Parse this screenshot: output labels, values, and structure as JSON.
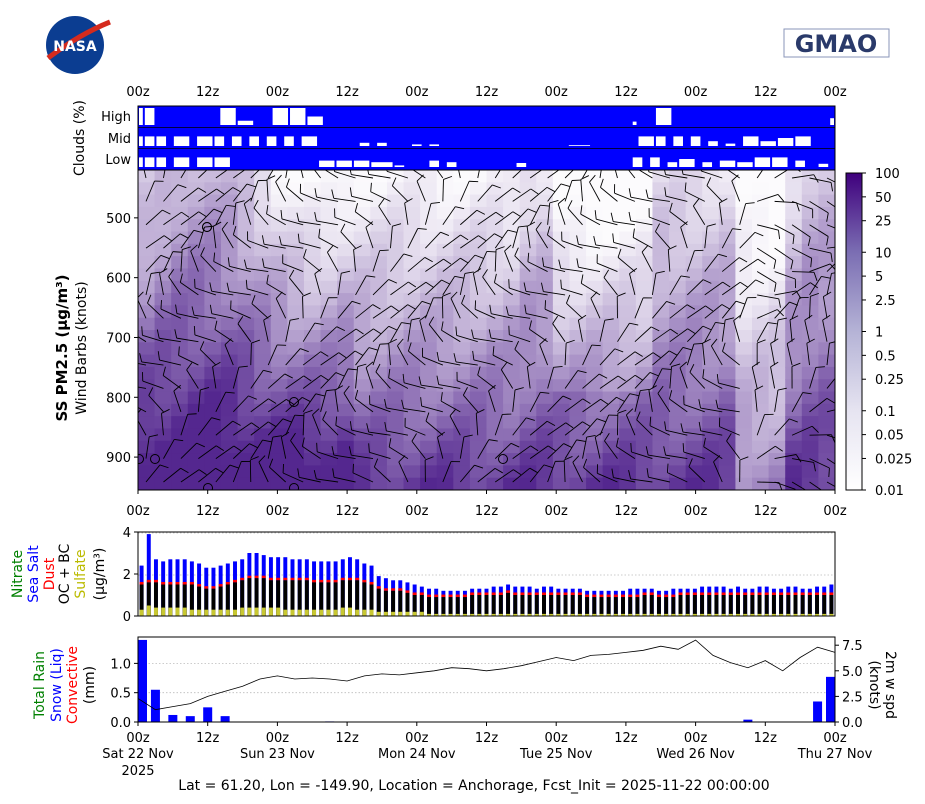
{
  "logos": {
    "nasa": "NASA",
    "gmao": "GMAO"
  },
  "time_axis": {
    "tick_labels": [
      "00z",
      "12z",
      "00z",
      "12z",
      "00z",
      "12z",
      "00z",
      "12z",
      "00z",
      "12z",
      "00z"
    ],
    "day_labels": [
      "Sat 22 Nov",
      "Sun 23 Nov",
      "Mon 24 Nov",
      "Tue 25 Nov",
      "Wed 26 Nov",
      "Thu 27 Nov"
    ],
    "year_label": "2025"
  },
  "clouds": {
    "ylabel": "Clouds (%)",
    "levels": [
      "High",
      "Mid",
      "Low"
    ],
    "color": "#0000ff"
  },
  "profile": {
    "ylabel_bold": "SS PM2.5 (μg/m³)",
    "ylabel": "Wind Barbs (knots)",
    "pressure_ticks": [
      "500",
      "600",
      "700",
      "800",
      "900"
    ],
    "pressure_range": [
      955,
      420
    ],
    "colorbar_ticks": [
      "100",
      "50",
      "25",
      "10",
      "5",
      "2.5",
      "1",
      "0.5",
      "0.25",
      "0.1",
      "0.05",
      "0.025",
      "0.01"
    ],
    "colormap": [
      "#ffffff",
      "#3f007d"
    ]
  },
  "aerosol": {
    "ylabel_lines": [
      "Nitrate",
      "Sea Salt",
      "Dust",
      "OC + BC",
      "Sulfate",
      "(μg/m³)"
    ],
    "ylabel_colors": [
      "#008000",
      "#0000ff",
      "#ff0000",
      "#000000",
      "#bbbb00",
      "#000000"
    ],
    "yticks": [
      "0",
      "2",
      "4"
    ],
    "ylim": [
      0,
      4
    ]
  },
  "precip": {
    "ylabel_lines": [
      "Total Rain",
      "Snow (Liq)",
      "Convective",
      "(mm)"
    ],
    "ylabel_colors": [
      "#008000",
      "#0000ff",
      "#ff0000",
      "#000000"
    ],
    "yticks": [
      "0.0",
      "0.5",
      "1.0"
    ],
    "ylim": [
      0,
      1.45
    ],
    "right_ylabel_lines": [
      "2m w spd",
      "(knots)"
    ],
    "right_yticks": [
      "0.0",
      "2.5",
      "5.0",
      "7.5"
    ],
    "right_ylim": [
      0,
      8.3
    ]
  },
  "footer": "Lat = 61.20, Lon = -149.90, Location = Anchorage, Fcst_Init = 2025-11-22 00:00:00",
  "chart_data": {
    "type": "bar",
    "x_hours": [
      0,
      120
    ],
    "x_tick_step_hours": 12,
    "aerosol_series": {
      "total_hourly_3h": [
        2.4,
        3.9,
        2.7,
        2.6,
        2.7,
        2.7,
        2.7,
        2.6,
        2.5,
        2.3,
        2.3,
        2.4,
        2.5,
        2.6,
        2.7,
        3.0,
        3.0,
        2.9,
        2.8,
        2.8,
        2.8,
        2.7,
        2.7,
        2.7,
        2.6,
        2.6,
        2.6,
        2.6,
        2.7,
        2.8,
        2.7,
        2.5,
        2.4,
        1.9,
        1.8,
        1.7,
        1.7,
        1.6,
        1.5,
        1.4,
        1.3,
        1.3,
        1.2,
        1.2,
        1.2,
        1.2,
        1.3,
        1.3,
        1.3,
        1.4,
        1.4,
        1.5,
        1.4,
        1.4,
        1.4,
        1.3,
        1.4,
        1.4,
        1.3,
        1.3,
        1.3,
        1.3,
        1.2,
        1.2,
        1.2,
        1.2,
        1.2,
        1.2,
        1.3,
        1.3,
        1.3,
        1.3,
        1.2,
        1.2,
        1.3,
        1.3,
        1.3,
        1.3,
        1.4,
        1.4,
        1.4,
        1.4,
        1.3,
        1.4,
        1.3,
        1.3,
        1.4,
        1.4,
        1.3,
        1.3,
        1.4,
        1.4,
        1.3,
        1.3,
        1.4,
        1.4,
        1.5
      ],
      "black_hourly_3h": [
        1.5,
        1.6,
        1.6,
        1.5,
        1.5,
        1.5,
        1.5,
        1.5,
        1.4,
        1.3,
        1.3,
        1.4,
        1.5,
        1.6,
        1.7,
        1.8,
        1.8,
        1.8,
        1.7,
        1.7,
        1.7,
        1.7,
        1.7,
        1.7,
        1.6,
        1.6,
        1.6,
        1.6,
        1.7,
        1.7,
        1.7,
        1.6,
        1.5,
        1.3,
        1.2,
        1.2,
        1.2,
        1.1,
        1.0,
        1.0,
        0.9,
        0.9,
        0.9,
        0.9,
        0.9,
        0.9,
        1.0,
        1.0,
        1.0,
        1.0,
        1.0,
        1.1,
        1.0,
        1.0,
        1.0,
        1.0,
        1.0,
        1.0,
        1.0,
        1.0,
        1.0,
        1.0,
        0.9,
        0.9,
        0.9,
        0.9,
        0.9,
        0.9,
        0.9,
        0.9,
        1.0,
        1.0,
        0.9,
        0.9,
        0.9,
        1.0,
        1.0,
        1.0,
        1.0,
        1.0,
        1.0,
        1.0,
        1.0,
        1.0,
        1.0,
        1.0,
        1.0,
        1.0,
        1.0,
        1.0,
        1.0,
        1.0,
        1.0,
        1.0,
        1.0,
        1.0,
        1.0
      ],
      "sulfate_hourly_3h": [
        0.3,
        0.5,
        0.4,
        0.4,
        0.4,
        0.4,
        0.4,
        0.3,
        0.3,
        0.3,
        0.3,
        0.3,
        0.3,
        0.3,
        0.4,
        0.4,
        0.4,
        0.4,
        0.4,
        0.4,
        0.3,
        0.3,
        0.3,
        0.3,
        0.3,
        0.3,
        0.3,
        0.3,
        0.4,
        0.4,
        0.3,
        0.3,
        0.3,
        0.2,
        0.2,
        0.2,
        0.2,
        0.2,
        0.2,
        0.2,
        0.1,
        0.1,
        0.1,
        0.1,
        0.1,
        0.1,
        0.1,
        0.1,
        0.1,
        0.1,
        0.1,
        0.1,
        0.1,
        0.1,
        0.1,
        0.1,
        0.1,
        0.1,
        0.1,
        0.1,
        0.1,
        0.1,
        0.1,
        0.1,
        0.1,
        0.1,
        0.1,
        0.1,
        0.1,
        0.1,
        0.1,
        0.1,
        0.1,
        0.1,
        0.1,
        0.1,
        0.1,
        0.1,
        0.1,
        0.1,
        0.1,
        0.1,
        0.1,
        0.1,
        0.1,
        0.1,
        0.1,
        0.1,
        0.1,
        0.1,
        0.1,
        0.1,
        0.1,
        0.1,
        0.1,
        0.1,
        0.1
      ]
    },
    "precip_bars_snow_mm": [
      [
        0,
        1.4
      ],
      [
        3,
        0.55
      ],
      [
        6,
        0.12
      ],
      [
        9,
        0.1
      ],
      [
        12,
        0.25
      ],
      [
        15,
        0.1
      ],
      [
        33,
        0.01
      ],
      [
        105,
        0.04
      ],
      [
        117,
        0.35
      ],
      [
        120,
        0.77
      ]
    ],
    "wind_speed_2m_knots": [
      [
        0,
        2.3
      ],
      [
        3,
        1.2
      ],
      [
        6,
        1.5
      ],
      [
        9,
        1.8
      ],
      [
        12,
        2.5
      ],
      [
        15,
        3.0
      ],
      [
        18,
        3.5
      ],
      [
        21,
        4.2
      ],
      [
        24,
        4.5
      ],
      [
        27,
        4.2
      ],
      [
        30,
        4.3
      ],
      [
        33,
        4.2
      ],
      [
        36,
        4.0
      ],
      [
        39,
        4.5
      ],
      [
        42,
        4.7
      ],
      [
        45,
        4.6
      ],
      [
        48,
        4.8
      ],
      [
        51,
        5.0
      ],
      [
        54,
        5.3
      ],
      [
        57,
        5.2
      ],
      [
        60,
        5.0
      ],
      [
        63,
        5.2
      ],
      [
        66,
        5.5
      ],
      [
        69,
        5.9
      ],
      [
        72,
        6.3
      ],
      [
        75,
        6.0
      ],
      [
        78,
        6.5
      ],
      [
        81,
        6.6
      ],
      [
        84,
        6.8
      ],
      [
        87,
        7.0
      ],
      [
        90,
        7.4
      ],
      [
        93,
        7.1
      ],
      [
        96,
        8.0
      ],
      [
        99,
        6.5
      ],
      [
        102,
        5.8
      ],
      [
        105,
        5.3
      ],
      [
        108,
        6.0
      ],
      [
        111,
        5.0
      ],
      [
        114,
        6.3
      ],
      [
        117,
        7.3
      ],
      [
        120,
        6.8
      ]
    ]
  }
}
